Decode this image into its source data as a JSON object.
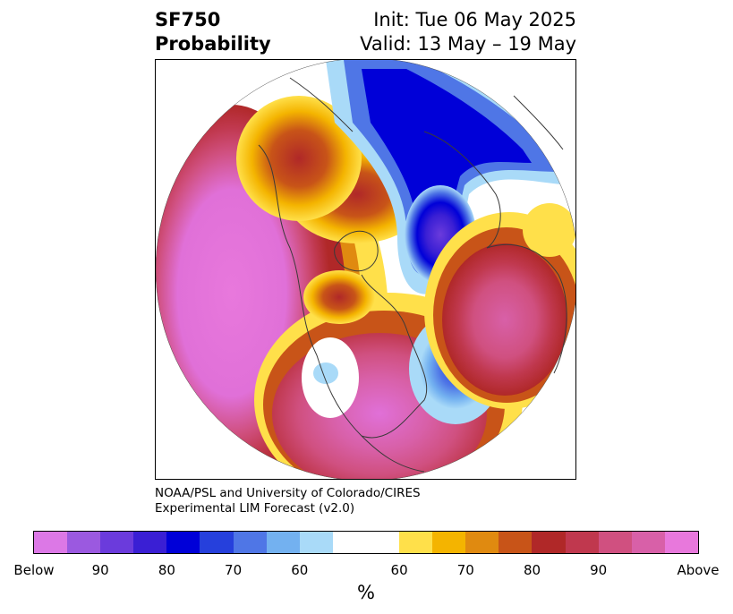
{
  "header": {
    "title_line1": "SF750",
    "title_line2": "Probability",
    "init": "Init: Tue 06 May 2025",
    "valid": "Valid: 13 May – 19 May"
  },
  "credit": {
    "line1": "NOAA/PSL and University of Colorado/CIRES",
    "line2": "Experimental LIM Forecast (v2.0)"
  },
  "colorbar": {
    "units": "%",
    "colors": [
      "#dc78e6",
      "#9b59e0",
      "#6b3bdc",
      "#3a1fd4",
      "#0000d8",
      "#2640dc",
      "#4f76e6",
      "#73b1f0",
      "#a9daf8",
      "#ffffff",
      "#ffe04a",
      "#f4b400",
      "#e08a10",
      "#c85418",
      "#b02828",
      "#c0384e",
      "#d05080",
      "#d860a8",
      "#e878dc"
    ],
    "tick_labels": [
      "Below",
      "90",
      "80",
      "70",
      "60",
      "60",
      "70",
      "80",
      "90",
      "Above"
    ]
  },
  "map": {
    "below_color": "#2a10c8",
    "above_color": "#e070d8"
  }
}
